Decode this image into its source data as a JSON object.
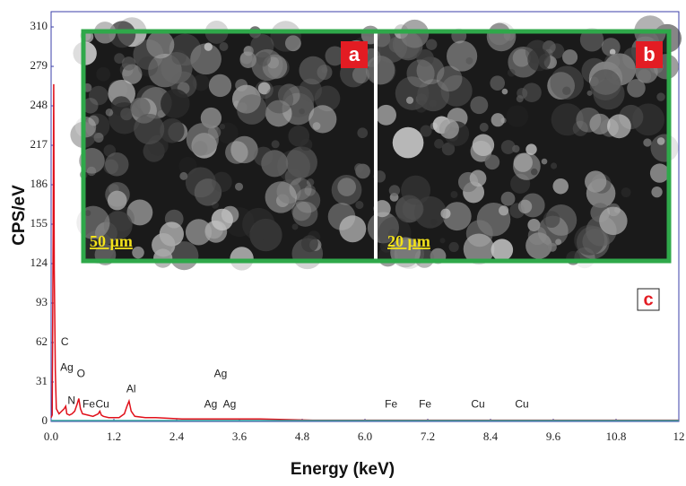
{
  "chart_data": {
    "type": "line",
    "xlabel": "Energy (keV)",
    "ylabel": "CPS/eV",
    "xlim": [
      0,
      12
    ],
    "ylim": [
      0,
      322
    ],
    "xticks": [
      {
        "value": 0,
        "label": "0.0"
      },
      1.2,
      2.4,
      3.6,
      4.8,
      {
        "value": 6,
        "label": "6.0"
      },
      7.2,
      8.4,
      9.6,
      10.8,
      12
    ],
    "yticks": [
      0,
      31,
      62,
      93,
      124,
      155,
      186,
      217,
      248,
      279,
      310
    ],
    "x": [
      0.0,
      0.02,
      0.04,
      0.05,
      0.06,
      0.08,
      0.1,
      0.15,
      0.2,
      0.25,
      0.28,
      0.3,
      0.35,
      0.4,
      0.45,
      0.5,
      0.53,
      0.56,
      0.6,
      0.7,
      0.8,
      0.9,
      0.93,
      0.96,
      1.0,
      1.1,
      1.2,
      1.3,
      1.4,
      1.45,
      1.49,
      1.53,
      1.6,
      1.8,
      2.0,
      2.5,
      3.0,
      4.0,
      5.0,
      6.0,
      7.0,
      8.0,
      9.0,
      10.0,
      11.0,
      12.0
    ],
    "series": [
      {
        "color": "#e0101a",
        "values": [
          3,
          5,
          150,
          265,
          120,
          40,
          10,
          6,
          8,
          10,
          12,
          6,
          5,
          6,
          8,
          14,
          18,
          10,
          6,
          5,
          4,
          6,
          8,
          5,
          4,
          3,
          3,
          3,
          6,
          12,
          16,
          8,
          4,
          3,
          3,
          2,
          2,
          2,
          1,
          1,
          1,
          1,
          1,
          1,
          1,
          1
        ]
      }
    ],
    "annotations": [
      {
        "text": "C",
        "x": 0.26,
        "y": 62
      },
      {
        "text": "Ag",
        "x": 0.3,
        "y": 42
      },
      {
        "text": "O",
        "x": 0.57,
        "y": 37
      },
      {
        "text": "N",
        "x": 0.39,
        "y": 16
      },
      {
        "text": "Fe",
        "x": 0.72,
        "y": 13
      },
      {
        "text": "Cu",
        "x": 0.98,
        "y": 13
      },
      {
        "text": "Al",
        "x": 1.53,
        "y": 25
      },
      {
        "text": "Ag",
        "x": 3.24,
        "y": 37
      },
      {
        "text": "Ag",
        "x": 3.05,
        "y": 13
      },
      {
        "text": "Ag",
        "x": 3.41,
        "y": 13
      },
      {
        "text": "Fe",
        "x": 6.5,
        "y": 13
      },
      {
        "text": "Fe",
        "x": 7.15,
        "y": 13
      },
      {
        "text": "Cu",
        "x": 8.16,
        "y": 13
      },
      {
        "text": "Cu",
        "x": 9.0,
        "y": 13
      }
    ],
    "insets": [
      {
        "label": "a",
        "scale_bar": "50 µm"
      },
      {
        "label": "b",
        "scale_bar": "20 µm"
      }
    ],
    "panel_label": "c"
  }
}
